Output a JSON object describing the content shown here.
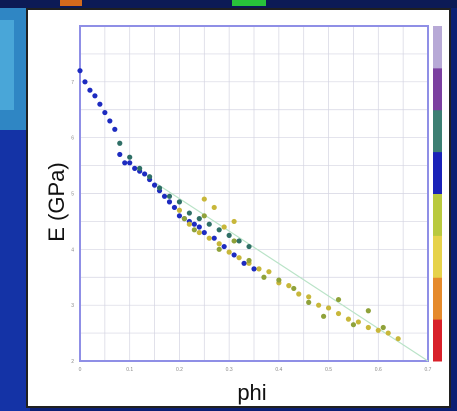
{
  "chart_data": {
    "type": "scatter",
    "title": "",
    "xlabel": "phi",
    "ylabel": "E (GPa)",
    "xlim": [
      0,
      0.7
    ],
    "ylim": [
      2,
      8
    ],
    "x_ticks": [
      "0",
      "0.1",
      "0.2",
      "0.3",
      "0.4",
      "0.5",
      "0.6",
      "0.7"
    ],
    "y_ticks": [
      "2",
      "3",
      "4",
      "5",
      "6",
      "7"
    ],
    "grid": true,
    "legend": "none",
    "colorbar": {
      "position": "right",
      "colors": [
        "#d8202a",
        "#e58a2c",
        "#e6d24a",
        "#b9c93e",
        "#1a22b8",
        "#3d7f73",
        "#7b3fa0",
        "#b7a9d6"
      ]
    },
    "series": [
      {
        "color": "#1d2bc0",
        "x": [
          0.0,
          0.01,
          0.02,
          0.03,
          0.04,
          0.05,
          0.06,
          0.07,
          0.08,
          0.09,
          0.1,
          0.11,
          0.12,
          0.13,
          0.14,
          0.15,
          0.16,
          0.17,
          0.18,
          0.19,
          0.2,
          0.21,
          0.22,
          0.23,
          0.24,
          0.25,
          0.27,
          0.29,
          0.31,
          0.33,
          0.35
        ],
        "y": [
          7.2,
          7.0,
          6.85,
          6.75,
          6.6,
          6.45,
          6.3,
          6.15,
          5.7,
          5.55,
          5.55,
          5.45,
          5.4,
          5.35,
          5.25,
          5.15,
          5.05,
          4.95,
          4.85,
          4.75,
          4.6,
          4.55,
          4.5,
          4.45,
          4.4,
          4.3,
          4.2,
          4.05,
          3.9,
          3.75,
          3.65
        ]
      },
      {
        "color": "#2f6f66",
        "x": [
          0.08,
          0.1,
          0.12,
          0.14,
          0.16,
          0.18,
          0.2,
          0.22,
          0.24,
          0.26,
          0.28,
          0.3,
          0.32,
          0.34
        ],
        "y": [
          5.9,
          5.65,
          5.45,
          5.3,
          5.1,
          4.95,
          4.85,
          4.65,
          4.55,
          4.45,
          4.35,
          4.25,
          4.15,
          4.05
        ]
      },
      {
        "color": "#c8b73a",
        "x": [
          0.2,
          0.22,
          0.24,
          0.25,
          0.26,
          0.27,
          0.28,
          0.29,
          0.3,
          0.31,
          0.32,
          0.34,
          0.36,
          0.38,
          0.4,
          0.42,
          0.44,
          0.46,
          0.48,
          0.5,
          0.52,
          0.54,
          0.56,
          0.58,
          0.6,
          0.62,
          0.64
        ],
        "y": [
          4.7,
          4.45,
          4.3,
          4.9,
          4.2,
          4.75,
          4.1,
          4.4,
          3.95,
          4.5,
          3.85,
          3.75,
          3.65,
          3.6,
          3.4,
          3.35,
          3.2,
          3.15,
          3.0,
          2.95,
          2.85,
          2.75,
          2.7,
          2.6,
          2.55,
          2.5,
          2.4
        ]
      },
      {
        "color": "#8fa23a",
        "x": [
          0.21,
          0.23,
          0.25,
          0.28,
          0.31,
          0.34,
          0.37,
          0.4,
          0.43,
          0.46,
          0.49,
          0.52,
          0.55,
          0.58,
          0.61
        ],
        "y": [
          4.55,
          4.35,
          4.6,
          4.0,
          4.15,
          3.8,
          3.5,
          3.45,
          3.3,
          3.05,
          2.8,
          3.1,
          2.65,
          2.9,
          2.6
        ]
      }
    ],
    "trend_line": {
      "color": "#b9e3c7",
      "x": [
        0.15,
        0.7
      ],
      "y": [
        5.2,
        2.0
      ]
    }
  }
}
